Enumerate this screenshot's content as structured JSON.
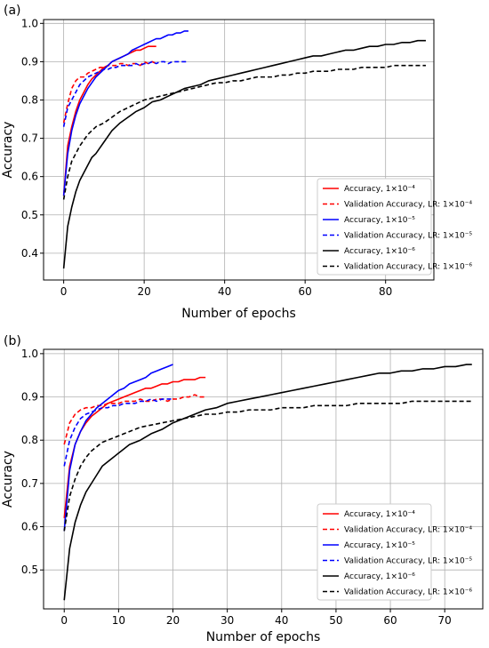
{
  "chart_data": [
    {
      "type": "line",
      "panel_label": "(a)",
      "xlabel": "Number of epochs",
      "ylabel": "Accuracy",
      "xlim": [
        -5,
        92
      ],
      "ylim": [
        0.33,
        1.01
      ],
      "xticks": [
        "0",
        "20",
        "40",
        "60",
        "80"
      ],
      "xtick_values": [
        0,
        20,
        40,
        60,
        80
      ],
      "yticks": [
        "0.4",
        "0.5",
        "0.6",
        "0.7",
        "0.8",
        "0.9",
        "1.0"
      ],
      "ytick_values": [
        0.4,
        0.5,
        0.6,
        0.7,
        0.8,
        0.9,
        1.0
      ],
      "grid": true,
      "legend_position": "lower-right",
      "series": [
        {
          "name": "Accuracy, 1×10⁻⁴",
          "color": "#ff0000",
          "dash": "solid",
          "x": [
            0,
            1,
            2,
            3,
            4,
            5,
            6,
            7,
            8,
            9,
            10,
            11,
            12,
            13,
            14,
            15,
            16,
            17,
            18,
            19,
            20,
            21,
            22,
            23
          ],
          "y": [
            0.55,
            0.68,
            0.73,
            0.77,
            0.8,
            0.82,
            0.84,
            0.855,
            0.865,
            0.875,
            0.885,
            0.89,
            0.9,
            0.905,
            0.91,
            0.915,
            0.92,
            0.925,
            0.93,
            0.93,
            0.935,
            0.94,
            0.94,
            0.94
          ]
        },
        {
          "name": "Validation Accuracy, LR: 1×10⁻⁴",
          "color": "#ff0000",
          "dash": "dashed",
          "x": [
            0,
            1,
            2,
            3,
            4,
            5,
            6,
            7,
            8,
            9,
            10,
            11,
            12,
            13,
            14,
            15,
            16,
            17,
            18,
            19,
            20,
            21,
            22,
            23
          ],
          "y": [
            0.74,
            0.79,
            0.83,
            0.85,
            0.86,
            0.86,
            0.87,
            0.875,
            0.88,
            0.885,
            0.885,
            0.89,
            0.89,
            0.89,
            0.895,
            0.895,
            0.89,
            0.895,
            0.895,
            0.89,
            0.9,
            0.895,
            0.9,
            0.895
          ]
        },
        {
          "name": "Accuracy, 1×10⁻⁵",
          "color": "#0000ff",
          "dash": "solid",
          "x": [
            0,
            1,
            2,
            3,
            4,
            5,
            6,
            7,
            8,
            9,
            10,
            11,
            12,
            13,
            14,
            15,
            16,
            17,
            18,
            19,
            20,
            21,
            22,
            23,
            24,
            25,
            26,
            27,
            28,
            29,
            30,
            31
          ],
          "y": [
            0.55,
            0.66,
            0.72,
            0.76,
            0.79,
            0.81,
            0.83,
            0.845,
            0.86,
            0.87,
            0.88,
            0.89,
            0.9,
            0.905,
            0.91,
            0.915,
            0.92,
            0.93,
            0.935,
            0.94,
            0.945,
            0.95,
            0.955,
            0.96,
            0.96,
            0.965,
            0.97,
            0.97,
            0.975,
            0.975,
            0.98,
            0.98
          ]
        },
        {
          "name": "Validation Accuracy, LR: 1×10⁻⁵",
          "color": "#0000ff",
          "dash": "dashed",
          "x": [
            0,
            1,
            2,
            3,
            4,
            5,
            6,
            7,
            8,
            9,
            10,
            11,
            12,
            13,
            14,
            15,
            16,
            17,
            18,
            19,
            20,
            21,
            22,
            23,
            24,
            25,
            26,
            27,
            28,
            29,
            30,
            31
          ],
          "y": [
            0.73,
            0.78,
            0.8,
            0.82,
            0.84,
            0.85,
            0.86,
            0.865,
            0.87,
            0.875,
            0.88,
            0.88,
            0.885,
            0.885,
            0.89,
            0.89,
            0.89,
            0.89,
            0.895,
            0.89,
            0.895,
            0.895,
            0.9,
            0.895,
            0.9,
            0.9,
            0.895,
            0.9,
            0.9,
            0.9,
            0.9,
            0.9
          ]
        },
        {
          "name": "Accuracy, 1×10⁻⁶",
          "color": "#000000",
          "dash": "solid",
          "x": [
            0,
            1,
            2,
            3,
            4,
            5,
            6,
            7,
            8,
            9,
            10,
            12,
            14,
            16,
            18,
            20,
            22,
            24,
            26,
            28,
            30,
            32,
            34,
            36,
            38,
            40,
            42,
            44,
            46,
            48,
            50,
            52,
            54,
            56,
            58,
            60,
            62,
            64,
            66,
            68,
            70,
            72,
            74,
            76,
            78,
            80,
            82,
            84,
            86,
            88,
            90
          ],
          "y": [
            0.36,
            0.47,
            0.52,
            0.56,
            0.59,
            0.61,
            0.63,
            0.65,
            0.66,
            0.675,
            0.69,
            0.72,
            0.74,
            0.755,
            0.77,
            0.78,
            0.795,
            0.8,
            0.81,
            0.82,
            0.83,
            0.835,
            0.84,
            0.85,
            0.855,
            0.86,
            0.865,
            0.87,
            0.875,
            0.88,
            0.885,
            0.89,
            0.895,
            0.9,
            0.905,
            0.91,
            0.915,
            0.915,
            0.92,
            0.925,
            0.93,
            0.93,
            0.935,
            0.94,
            0.94,
            0.945,
            0.945,
            0.95,
            0.95,
            0.955,
            0.955
          ]
        },
        {
          "name": "Validation Accuracy, LR: 1×10⁻⁶",
          "color": "#000000",
          "dash": "dashed",
          "x": [
            0,
            1,
            2,
            3,
            4,
            5,
            6,
            7,
            8,
            9,
            10,
            12,
            14,
            16,
            18,
            20,
            22,
            24,
            26,
            28,
            30,
            32,
            34,
            36,
            38,
            40,
            42,
            44,
            46,
            48,
            50,
            52,
            54,
            56,
            58,
            60,
            62,
            64,
            66,
            68,
            70,
            72,
            74,
            76,
            78,
            80,
            82,
            84,
            86,
            88,
            90
          ],
          "y": [
            0.54,
            0.6,
            0.64,
            0.66,
            0.68,
            0.695,
            0.71,
            0.72,
            0.73,
            0.735,
            0.74,
            0.755,
            0.77,
            0.78,
            0.79,
            0.8,
            0.805,
            0.81,
            0.815,
            0.82,
            0.825,
            0.83,
            0.835,
            0.84,
            0.845,
            0.845,
            0.85,
            0.85,
            0.855,
            0.86,
            0.86,
            0.86,
            0.865,
            0.865,
            0.87,
            0.87,
            0.875,
            0.875,
            0.875,
            0.88,
            0.88,
            0.88,
            0.885,
            0.885,
            0.885,
            0.885,
            0.89,
            0.89,
            0.89,
            0.89,
            0.89
          ]
        }
      ]
    },
    {
      "type": "line",
      "panel_label": "(b)",
      "xlabel": "Number of epochs",
      "ylabel": "Accuracy",
      "xlim": [
        -3.8,
        77
      ],
      "ylim": [
        0.41,
        1.01
      ],
      "xticks": [
        "0",
        "10",
        "20",
        "30",
        "40",
        "50",
        "60",
        "70"
      ],
      "xtick_values": [
        0,
        10,
        20,
        30,
        40,
        50,
        60,
        70
      ],
      "yticks": [
        "0.5",
        "0.6",
        "0.7",
        "0.8",
        "0.9",
        "1.0"
      ],
      "ytick_values": [
        0.5,
        0.6,
        0.7,
        0.8,
        0.9,
        1.0
      ],
      "grid": true,
      "legend_position": "lower-right",
      "series": [
        {
          "name": "Accuracy, 1×10⁻⁴",
          "color": "#ff0000",
          "dash": "solid",
          "x": [
            0,
            1,
            2,
            3,
            4,
            5,
            6,
            7,
            8,
            9,
            10,
            11,
            12,
            13,
            14,
            15,
            16,
            17,
            18,
            19,
            20,
            21,
            22,
            23,
            24,
            25,
            26
          ],
          "y": [
            0.62,
            0.74,
            0.79,
            0.82,
            0.84,
            0.855,
            0.865,
            0.875,
            0.885,
            0.89,
            0.895,
            0.9,
            0.905,
            0.91,
            0.915,
            0.92,
            0.92,
            0.925,
            0.93,
            0.93,
            0.935,
            0.935,
            0.94,
            0.94,
            0.94,
            0.945,
            0.945
          ]
        },
        {
          "name": "Validation Accuracy, LR: 1×10⁻⁴",
          "color": "#ff0000",
          "dash": "dashed",
          "x": [
            0,
            1,
            2,
            3,
            4,
            5,
            6,
            7,
            8,
            9,
            10,
            11,
            12,
            13,
            14,
            15,
            16,
            17,
            18,
            19,
            20,
            21,
            22,
            23,
            24,
            25,
            26
          ],
          "y": [
            0.79,
            0.84,
            0.86,
            0.87,
            0.875,
            0.875,
            0.88,
            0.88,
            0.885,
            0.885,
            0.885,
            0.89,
            0.89,
            0.89,
            0.895,
            0.89,
            0.89,
            0.895,
            0.895,
            0.89,
            0.895,
            0.895,
            0.9,
            0.9,
            0.905,
            0.9,
            0.9
          ]
        },
        {
          "name": "Accuracy, 1×10⁻⁵",
          "color": "#0000ff",
          "dash": "solid",
          "x": [
            0,
            1,
            2,
            3,
            4,
            5,
            6,
            7,
            8,
            9,
            10,
            11,
            12,
            13,
            14,
            15,
            16,
            17,
            18,
            19,
            20
          ],
          "y": [
            0.59,
            0.73,
            0.79,
            0.82,
            0.845,
            0.86,
            0.875,
            0.885,
            0.895,
            0.905,
            0.915,
            0.92,
            0.93,
            0.935,
            0.94,
            0.945,
            0.955,
            0.96,
            0.965,
            0.97,
            0.975
          ]
        },
        {
          "name": "Validation Accuracy, LR: 1×10⁻⁵",
          "color": "#0000ff",
          "dash": "dashed",
          "x": [
            0,
            1,
            2,
            3,
            4,
            5,
            6,
            7,
            8,
            9,
            10,
            11,
            12,
            13,
            14,
            15,
            16,
            17,
            18,
            19,
            20
          ],
          "y": [
            0.74,
            0.8,
            0.83,
            0.85,
            0.86,
            0.865,
            0.87,
            0.875,
            0.875,
            0.88,
            0.88,
            0.885,
            0.885,
            0.885,
            0.89,
            0.89,
            0.895,
            0.89,
            0.895,
            0.895,
            0.895
          ]
        },
        {
          "name": "Accuracy, 1×10⁻⁶",
          "color": "#000000",
          "dash": "solid",
          "x": [
            0,
            1,
            2,
            3,
            4,
            5,
            6,
            7,
            8,
            9,
            10,
            12,
            14,
            16,
            18,
            20,
            22,
            24,
            26,
            28,
            30,
            32,
            34,
            36,
            38,
            40,
            42,
            44,
            46,
            48,
            50,
            52,
            54,
            56,
            58,
            60,
            62,
            64,
            66,
            68,
            70,
            72,
            74,
            75
          ],
          "y": [
            0.43,
            0.55,
            0.61,
            0.65,
            0.68,
            0.7,
            0.72,
            0.74,
            0.75,
            0.76,
            0.77,
            0.79,
            0.8,
            0.815,
            0.825,
            0.84,
            0.85,
            0.86,
            0.87,
            0.875,
            0.885,
            0.89,
            0.895,
            0.9,
            0.905,
            0.91,
            0.915,
            0.92,
            0.925,
            0.93,
            0.935,
            0.94,
            0.945,
            0.95,
            0.955,
            0.955,
            0.96,
            0.96,
            0.965,
            0.965,
            0.97,
            0.97,
            0.975,
            0.975
          ]
        },
        {
          "name": "Validation Accuracy, LR: 1×10⁻⁶",
          "color": "#000000",
          "dash": "dashed",
          "x": [
            0,
            1,
            2,
            3,
            4,
            5,
            6,
            7,
            8,
            9,
            10,
            12,
            14,
            16,
            18,
            20,
            22,
            24,
            26,
            28,
            30,
            32,
            34,
            36,
            38,
            40,
            42,
            44,
            46,
            48,
            50,
            52,
            54,
            56,
            58,
            60,
            62,
            64,
            66,
            68,
            70,
            72,
            74,
            75
          ],
          "y": [
            0.59,
            0.67,
            0.71,
            0.74,
            0.76,
            0.775,
            0.785,
            0.795,
            0.8,
            0.805,
            0.81,
            0.82,
            0.83,
            0.835,
            0.84,
            0.845,
            0.85,
            0.855,
            0.86,
            0.86,
            0.865,
            0.865,
            0.87,
            0.87,
            0.87,
            0.875,
            0.875,
            0.875,
            0.88,
            0.88,
            0.88,
            0.88,
            0.885,
            0.885,
            0.885,
            0.885,
            0.885,
            0.89,
            0.89,
            0.89,
            0.89,
            0.89,
            0.89,
            0.89
          ]
        }
      ]
    }
  ]
}
